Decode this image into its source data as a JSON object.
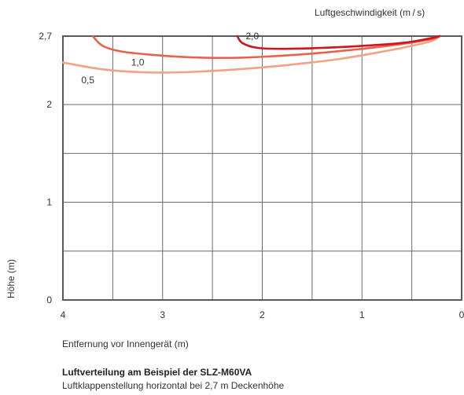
{
  "legend_title": "Luftgeschwindigkeit (m / s)",
  "y_axis_title": "Höhe (m)",
  "x_axis_title": "Entfernung vor Innengerät (m)",
  "caption": {
    "title": "Luftverteilung am Beispiel der SLZ-M60VA",
    "subtitle": "Luftklappenstellung horizontal bei 2,7 m Deckenhöhe"
  },
  "chart_data": {
    "type": "line",
    "title": "",
    "xlabel": "Entfernung vor Innengerät (m)",
    "ylabel": "Höhe (m)",
    "xlim": [
      4,
      0
    ],
    "ylim": [
      0,
      2.7
    ],
    "x_reversed": true,
    "grid": true,
    "x_ticks": [
      {
        "value": 4,
        "label": "4"
      },
      {
        "value": 3,
        "label": "3"
      },
      {
        "value": 2,
        "label": "2"
      },
      {
        "value": 1,
        "label": "1"
      },
      {
        "value": 0,
        "label": "0"
      }
    ],
    "y_ticks": [
      {
        "value": 0,
        "label": "0"
      },
      {
        "value": 1,
        "label": "1"
      },
      {
        "value": 2,
        "label": "2"
      },
      {
        "value": 2.7,
        "label": "2,7"
      }
    ],
    "x_gridlines": [
      3.5,
      3,
      2.5,
      2,
      1.5,
      1,
      0.5
    ],
    "y_gridlines": [
      0.5,
      1,
      1.5,
      2
    ],
    "series": [
      {
        "name": "0,5",
        "color": "#f2a383",
        "x": [
          4.0,
          3.6,
          3.2,
          2.8,
          2.4,
          2.0,
          1.6,
          1.2,
          0.8,
          0.5,
          0.3,
          0.22
        ],
        "y": [
          2.43,
          2.36,
          2.33,
          2.33,
          2.35,
          2.38,
          2.42,
          2.47,
          2.54,
          2.6,
          2.65,
          2.7
        ],
        "label_at": [
          3.75,
          2.25
        ]
      },
      {
        "name": "1,0",
        "color": "#e8614d",
        "x": [
          3.7,
          3.6,
          3.4,
          3.0,
          2.6,
          2.2,
          1.8,
          1.4,
          1.0,
          0.6,
          0.3,
          0.22
        ],
        "y": [
          2.7,
          2.6,
          2.54,
          2.5,
          2.48,
          2.48,
          2.5,
          2.53,
          2.57,
          2.62,
          2.67,
          2.7
        ],
        "label_at": [
          3.25,
          2.43
        ]
      },
      {
        "name": "2,0",
        "color": "#d0141e",
        "x": [
          2.25,
          2.2,
          2.05,
          1.8,
          1.4,
          1.0,
          0.6,
          0.35,
          0.22
        ],
        "y": [
          2.7,
          2.63,
          2.58,
          2.57,
          2.58,
          2.6,
          2.63,
          2.67,
          2.7
        ],
        "label_at": [
          2.1,
          2.7
        ]
      }
    ]
  }
}
